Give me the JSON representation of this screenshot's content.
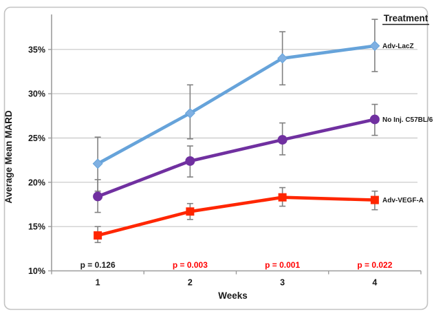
{
  "figure": {
    "background": "#ffffff",
    "border_color": "#c2c2c2"
  },
  "chart_data": {
    "type": "line",
    "title": "",
    "xlabel": "Weeks",
    "ylabel": "Average Mean MARD",
    "x_categories": [
      "1",
      "2",
      "3",
      "4"
    ],
    "ylim": [
      10,
      38.95
    ],
    "yticks": [
      10,
      15,
      20,
      25,
      30,
      35
    ],
    "ytick_format": "percent",
    "grid": true,
    "legend_title": "Treatment",
    "legend_position": "right-of-last-point",
    "series": [
      {
        "name": "Adv-LacZ",
        "color": "#66a3da",
        "marker_fill": "#7fb0e2",
        "marker": "diamond",
        "values": [
          22.1,
          27.8,
          34.0,
          35.4
        ],
        "err_low": [
          19.0,
          24.9,
          31.0,
          32.5
        ],
        "err_high": [
          25.1,
          31.0,
          37.0,
          38.4
        ],
        "label_color": "#1a1a1a"
      },
      {
        "name": "No Inj. C57BL/6",
        "color": "#7030a0",
        "marker_fill": "#7030a0",
        "marker": "circle",
        "values": [
          18.4,
          22.4,
          24.8,
          27.1
        ],
        "err_low": [
          16.6,
          20.6,
          23.1,
          25.3
        ],
        "err_high": [
          20.3,
          24.1,
          26.7,
          28.8
        ],
        "label_color": "#1a1a1a"
      },
      {
        "name": "Adv-VEGF-A",
        "color": "#ff2600",
        "marker_fill": "#ff2600",
        "marker": "square",
        "values": [
          14.0,
          16.7,
          18.3,
          18.0
        ],
        "err_low": [
          13.2,
          15.8,
          17.3,
          16.9
        ],
        "err_high": [
          15.0,
          17.6,
          19.4,
          19.0
        ],
        "label_color": "#1a1a1a"
      }
    ],
    "annotations": [
      {
        "text": "p = 0.126",
        "x_category": 0,
        "color": "#1a1a1a"
      },
      {
        "text": "p = 0.003",
        "x_category": 1,
        "color": "#ff0000"
      },
      {
        "text": "p = 0.001",
        "x_category": 2,
        "color": "#ff0000"
      },
      {
        "text": "p = 0.022",
        "x_category": 3,
        "color": "#ff0000"
      }
    ],
    "colors": {
      "gridline": "#c6c6c6",
      "axis": "#9c9c9c",
      "error_bar": "#808080",
      "text": "#1a1a1a"
    }
  }
}
